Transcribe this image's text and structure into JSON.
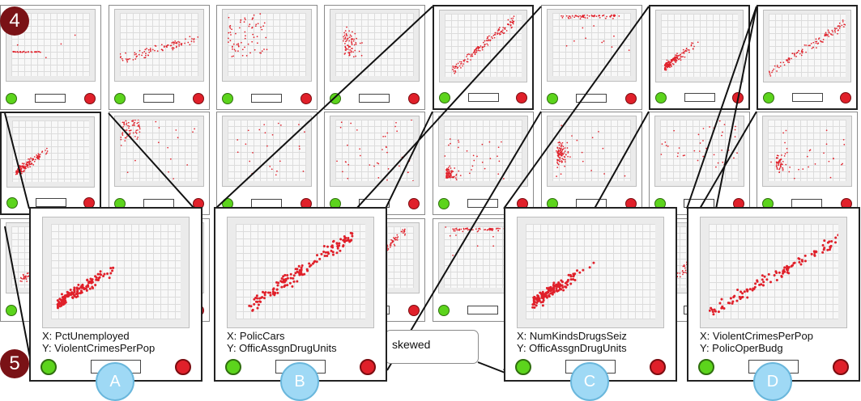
{
  "theme": {
    "point_color": "#e0202a",
    "approve_color": "#5cd41c",
    "reject_color": "#e0202a",
    "badge_color": "#7a1216",
    "letter_color": "#9fd9f5"
  },
  "badges": {
    "step_top": "4",
    "step_bottom": "5"
  },
  "skew_label": "skewed",
  "grid": {
    "rows": [
      [
        {
          "pattern": "hline"
        },
        {
          "pattern": "lowspread"
        },
        {
          "pattern": "topleft"
        },
        {
          "pattern": "leftcluster"
        },
        {
          "pattern": "diag",
          "selected": true
        },
        {
          "pattern": "top"
        },
        {
          "pattern": "diaglow",
          "selected": true
        },
        {
          "pattern": "diag2",
          "selected": true
        }
      ],
      [
        {
          "pattern": "diaglow",
          "selected": true
        },
        {
          "pattern": "topleftdense"
        },
        {
          "pattern": "sparse"
        },
        {
          "pattern": "sparse2"
        },
        {
          "pattern": "cornerdense"
        },
        {
          "pattern": "leftcluster2"
        },
        {
          "pattern": "sparse3"
        },
        {
          "pattern": "cornerup"
        }
      ],
      [
        {
          "pattern": "diag"
        },
        {
          "pattern": "diag"
        },
        {
          "pattern": "diag"
        },
        {
          "pattern": "diag"
        },
        {
          "pattern": "top"
        },
        {
          "pattern": "diag"
        },
        {
          "pattern": "diag"
        },
        {
          "pattern": "diag"
        }
      ]
    ]
  },
  "zoom_panels": [
    {
      "letter": "A",
      "x_label": "X: PctUnemployed",
      "y_label": "Y: ViolentCrimesPerPop",
      "pattern": "diaglow"
    },
    {
      "letter": "B",
      "x_label": "X: PolicCars",
      "y_label": "Y: OfficAssgnDrugUnits",
      "pattern": "diag"
    },
    {
      "letter": "C",
      "x_label": "X: NumKindsDrugsSeiz",
      "y_label": "Y: OfficAssgnDrugUnits",
      "pattern": "diaglow"
    },
    {
      "letter": "D",
      "x_label": "X: ViolentCrimesPerPop",
      "y_label": "Y: PolicOperBudg",
      "pattern": "diag2"
    }
  ]
}
